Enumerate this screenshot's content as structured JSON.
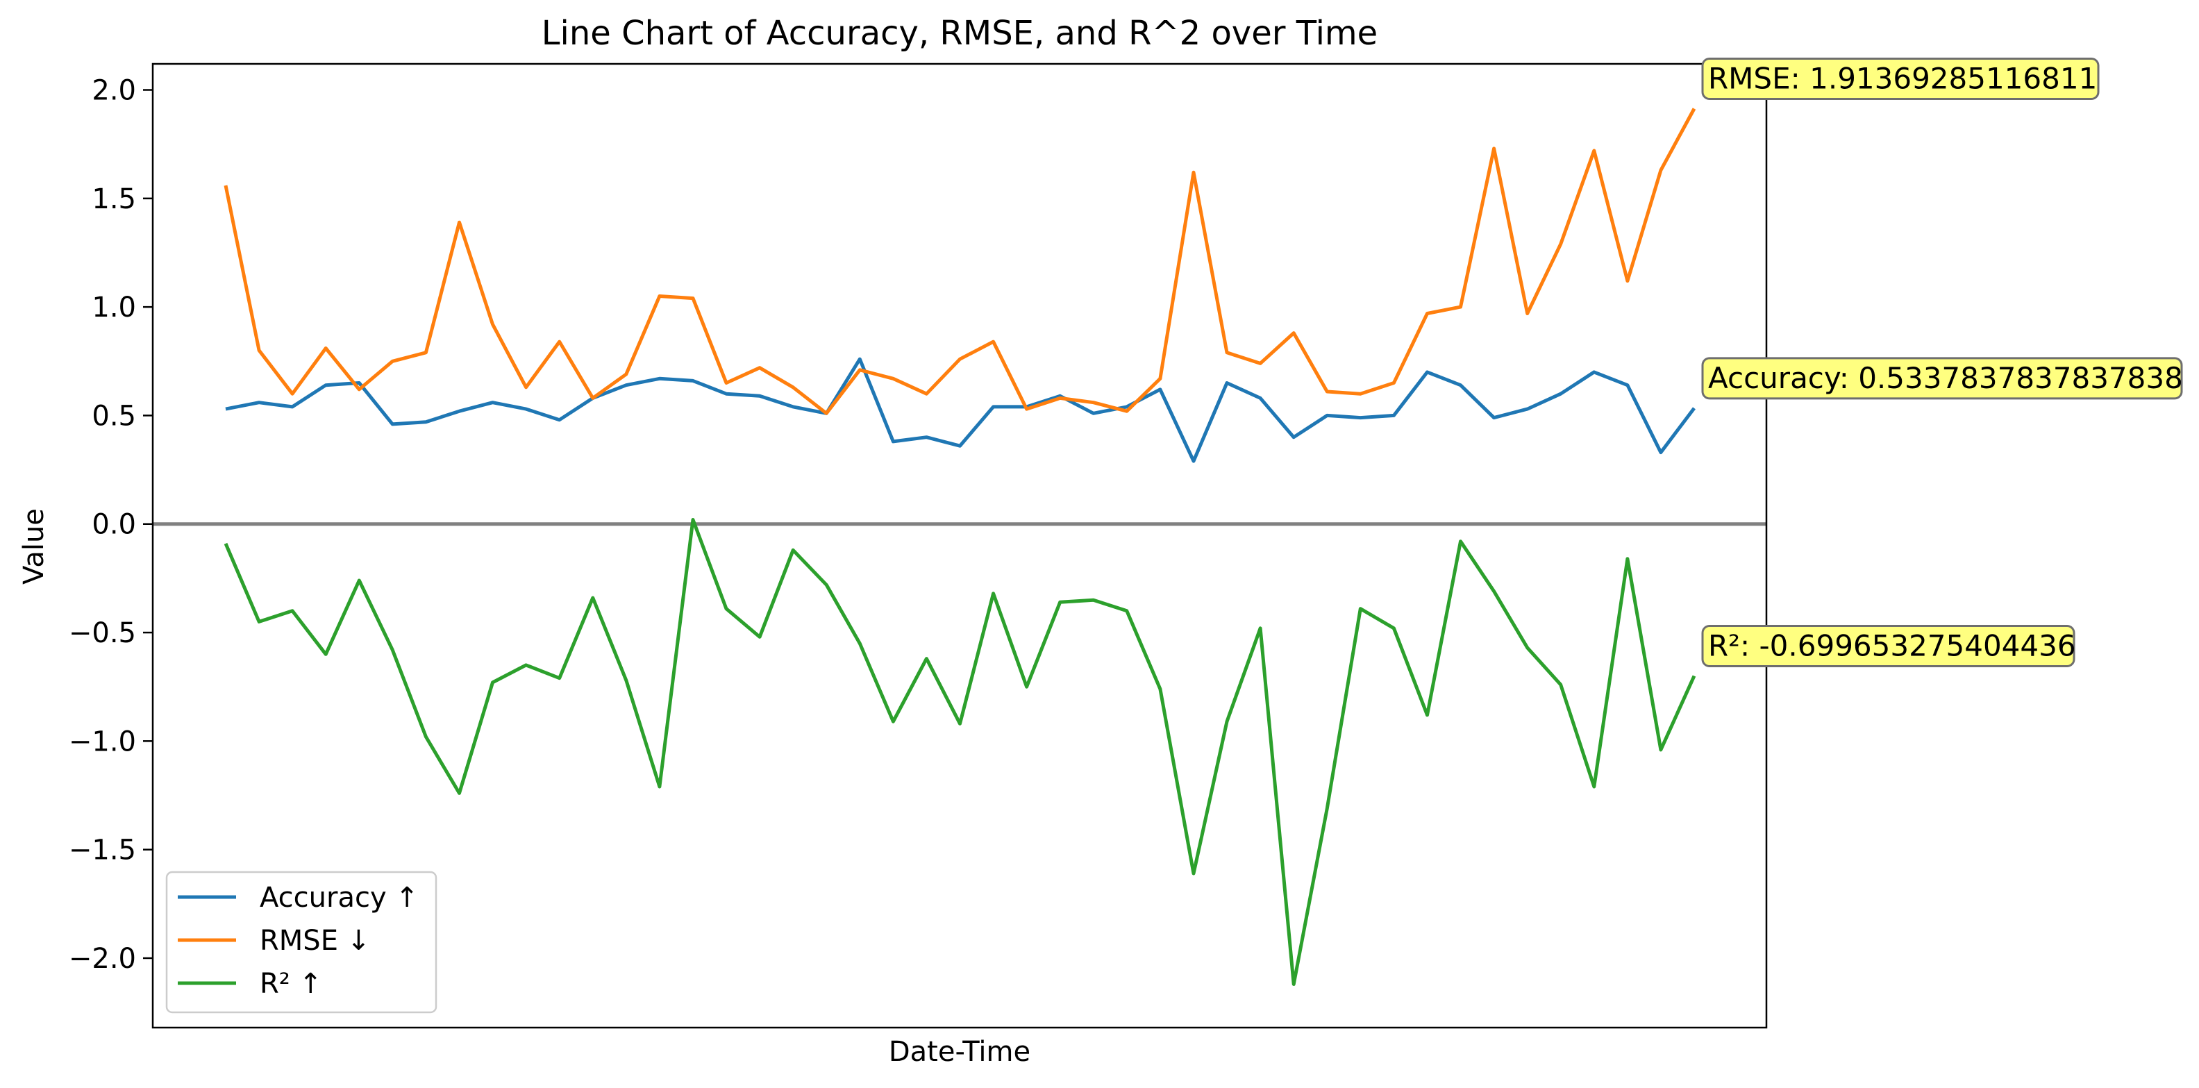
{
  "chart_data": {
    "type": "line",
    "title": "Line Chart of Accuracy, RMSE, and R^2 over Time",
    "xlabel": "Date-Time",
    "ylabel": "Value",
    "ylim": [
      -2.32,
      2.12
    ],
    "yticks": [
      2.0,
      1.5,
      1.0,
      0.5,
      0.0,
      -0.5,
      -1.0,
      -1.5,
      -2.0
    ],
    "ytick_labels": [
      "2.0",
      "1.5",
      "1.0",
      "0.5",
      "0.0",
      "−0.5",
      "−1.0",
      "−1.5",
      "−2.0"
    ],
    "x": [
      0,
      1,
      2,
      3,
      4,
      5,
      6,
      7,
      8,
      9,
      10,
      11,
      12,
      13,
      14,
      15,
      16,
      17,
      18,
      19,
      20,
      21,
      22,
      23,
      24,
      25,
      26,
      27,
      28,
      29,
      30,
      31,
      32,
      33,
      34,
      35,
      36,
      37,
      38,
      39,
      40,
      41,
      42,
      43,
      44
    ],
    "xticks_shown": false,
    "grid": false,
    "legend_position": "lower-left",
    "reference_line": {
      "y": 0.0,
      "color": "#808080"
    },
    "series": [
      {
        "name": "Accuracy ↑",
        "color": "#1f77b4",
        "values": [
          0.53,
          0.56,
          0.54,
          0.64,
          0.65,
          0.46,
          0.47,
          0.52,
          0.56,
          0.53,
          0.48,
          0.58,
          0.64,
          0.67,
          0.66,
          0.6,
          0.59,
          0.54,
          0.51,
          0.76,
          0.38,
          0.4,
          0.36,
          0.54,
          0.54,
          0.59,
          0.51,
          0.54,
          0.62,
          0.29,
          0.65,
          0.58,
          0.4,
          0.5,
          0.49,
          0.5,
          0.7,
          0.64,
          0.49,
          0.53,
          0.6,
          0.7,
          0.64,
          0.33,
          0.5337837837837838
        ],
        "annotation": "Accuracy: 0.5337837837837838"
      },
      {
        "name": "RMSE ↓",
        "color": "#ff7f0e",
        "values": [
          1.56,
          0.8,
          0.6,
          0.81,
          0.62,
          0.75,
          0.79,
          1.39,
          0.92,
          0.63,
          0.84,
          0.58,
          0.69,
          1.05,
          1.04,
          0.65,
          0.72,
          0.63,
          0.51,
          0.71,
          0.67,
          0.6,
          0.76,
          0.84,
          0.53,
          0.58,
          0.56,
          0.52,
          0.67,
          1.62,
          0.79,
          0.74,
          0.88,
          0.61,
          0.6,
          0.65,
          0.97,
          1.0,
          1.73,
          0.97,
          1.29,
          1.72,
          1.12,
          1.63,
          1.91369285116811
        ],
        "annotation": "RMSE: 1.91369285116811"
      },
      {
        "name": "R² ↑",
        "color": "#2ca02c",
        "values": [
          -0.09,
          -0.45,
          -0.4,
          -0.6,
          -0.26,
          -0.58,
          -0.98,
          -1.24,
          -0.73,
          -0.65,
          -0.71,
          -0.34,
          -0.72,
          -1.21,
          0.02,
          -0.39,
          -0.52,
          -0.12,
          -0.28,
          -0.55,
          -0.91,
          -0.62,
          -0.92,
          -0.32,
          -0.75,
          -0.36,
          -0.35,
          -0.4,
          -0.76,
          -1.61,
          -0.91,
          -0.48,
          -2.12,
          -1.31,
          -0.39,
          -0.48,
          -0.88,
          -0.08,
          -0.31,
          -0.57,
          -0.74,
          -1.21,
          -0.16,
          -1.04,
          -0.699653275404436
        ],
        "annotation": "R²: -0.699653275404436"
      }
    ]
  }
}
